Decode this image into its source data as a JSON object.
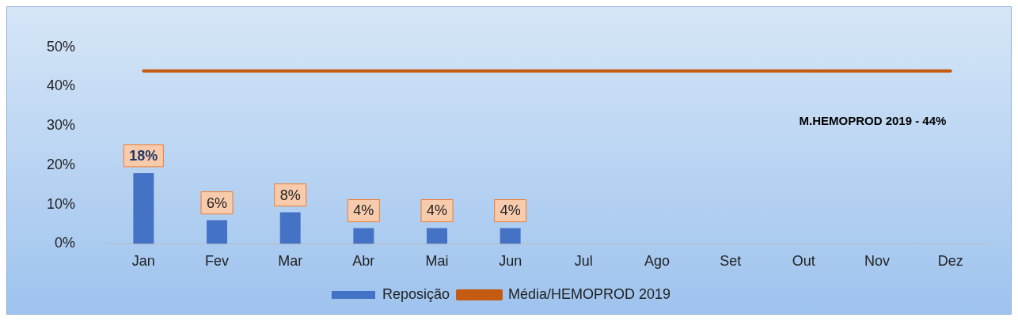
{
  "chart_data": {
    "type": "bar",
    "categories": [
      "Jan",
      "Fev",
      "Mar",
      "Abr",
      "Mai",
      "Jun",
      "Jul",
      "Ago",
      "Set",
      "Out",
      "Nov",
      "Dez"
    ],
    "series": [
      {
        "name": "Reposição",
        "color": "#4472c4",
        "values": [
          18,
          6,
          8,
          4,
          4,
          4,
          null,
          null,
          null,
          null,
          null,
          null
        ],
        "value_labels": [
          "18%",
          "6%",
          "8%",
          "4%",
          "4%",
          "4%",
          null,
          null,
          null,
          null,
          null,
          null
        ]
      },
      {
        "name": "Média/HEMOPROD 2019",
        "type": "line",
        "color": "#c55a11",
        "values": [
          44,
          44,
          44,
          44,
          44,
          44,
          44,
          44,
          44,
          44,
          44,
          44
        ]
      }
    ],
    "ylim": [
      0,
      50
    ],
    "yticks": [
      {
        "value": 0,
        "label": "0%"
      },
      {
        "value": 10,
        "label": "10%"
      },
      {
        "value": 20,
        "label": "20%"
      },
      {
        "value": 30,
        "label": "30%"
      },
      {
        "value": 40,
        "label": "40%"
      },
      {
        "value": 50,
        "label": "50%"
      }
    ],
    "annotations": [
      "M.HEMOPROD 2019 - 44%"
    ],
    "grid": false,
    "legend": "bottom",
    "marker": "none"
  }
}
